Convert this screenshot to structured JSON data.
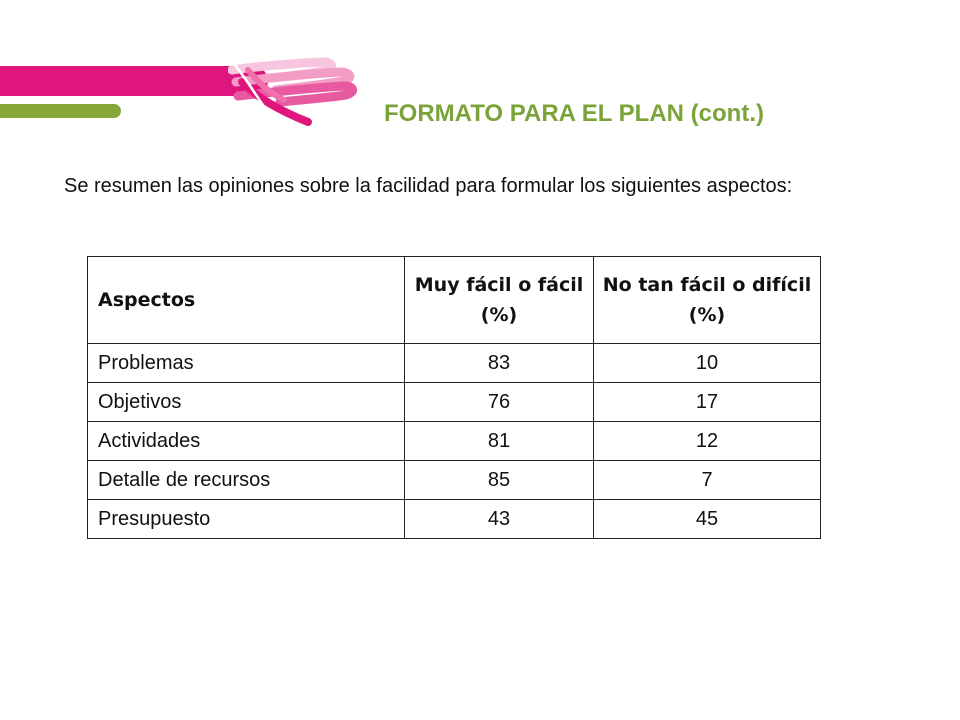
{
  "header": {
    "title": "FORMATO PARA EL PLAN (cont.)",
    "accent_colors": {
      "pink": "#e0167f",
      "green": "#86a83b",
      "title": "#7aa33a"
    },
    "decoration": "hands-logo-icon"
  },
  "intro": {
    "text": "Se resumen las opiniones sobre la facilidad para formular los siguientes aspectos:"
  },
  "table": {
    "columns": [
      "Aspectos",
      "Muy fácil o fácil (%)",
      "No tan fácil o difícil (%)"
    ],
    "rows": [
      {
        "aspect": "Problemas",
        "easy": "83",
        "hard": "10"
      },
      {
        "aspect": "Objetivos",
        "easy": "76",
        "hard": "17"
      },
      {
        "aspect": "Actividades",
        "easy": "81",
        "hard": "12"
      },
      {
        "aspect": "Detalle de recursos",
        "easy": "85",
        "hard": "7"
      },
      {
        "aspect": "Presupuesto",
        "easy": "43",
        "hard": "45"
      }
    ]
  }
}
